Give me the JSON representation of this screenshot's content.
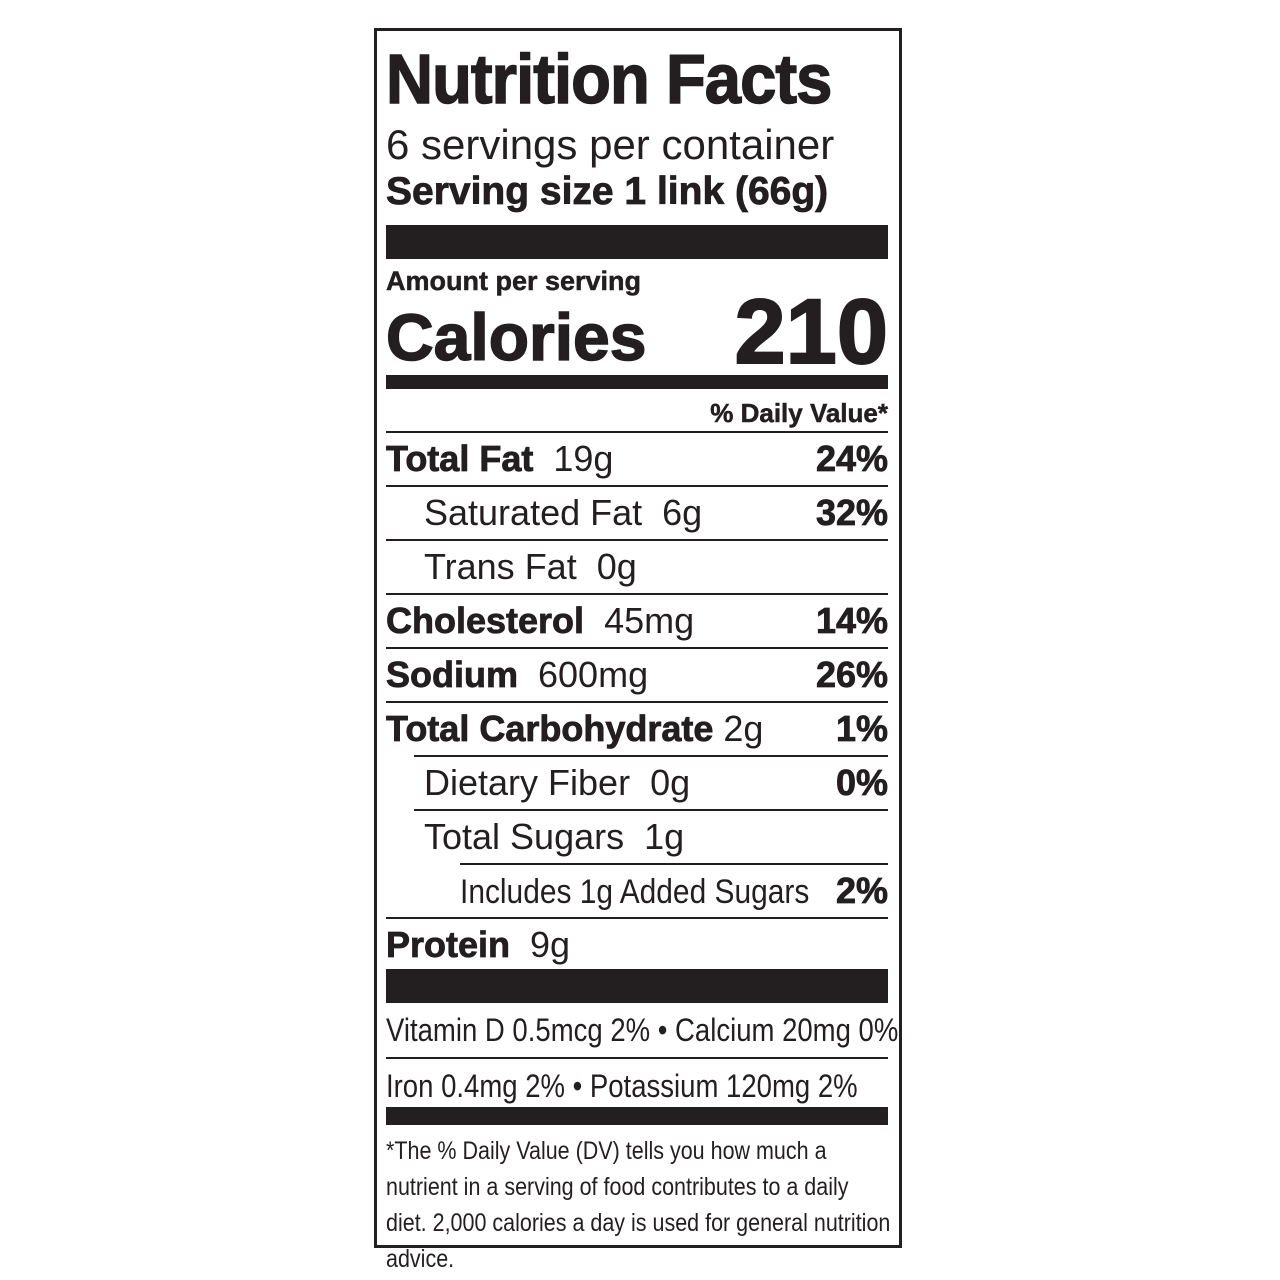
{
  "title": "Nutrition Facts",
  "servings_per_container": "6 servings per container",
  "serving_size": "Serving size 1 link (66g)",
  "amount_per_serving": "Amount per serving",
  "calories_label": "Calories",
  "calories_value": "210",
  "daily_value_header": "% Daily Value*",
  "nutrients": [
    {
      "name": "Total Fat",
      "amount": "19g",
      "dv": "24%"
    },
    {
      "name": "Saturated Fat",
      "amount": "6g",
      "dv": "32%"
    },
    {
      "name": "Trans Fat",
      "amount": "0g",
      "dv": ""
    },
    {
      "name": "Cholesterol",
      "amount": "45mg",
      "dv": "14%"
    },
    {
      "name": "Sodium",
      "amount": "600mg",
      "dv": "26%"
    },
    {
      "name": "Total Carbohydrate",
      "amount": "2g",
      "dv": "1%"
    },
    {
      "name": "Dietary Fiber",
      "amount": "0g",
      "dv": "0%"
    },
    {
      "name": "Total Sugars",
      "amount": "1g",
      "dv": ""
    },
    {
      "name": "Includes 1g Added Sugars",
      "amount": "",
      "dv": "2%"
    },
    {
      "name": "Protein",
      "amount": "9g",
      "dv": ""
    }
  ],
  "vitamins": [
    "Vitamin D 0.5mcg 2% • Calcium 20mg 0%",
    "Iron 0.4mg 2% • Potassium 120mg 2%"
  ],
  "footnote": "*The % Daily Value (DV) tells you how much a nutrient in a serving of food contributes to a daily diet. 2,000 calories a day is used for general nutrition advice."
}
